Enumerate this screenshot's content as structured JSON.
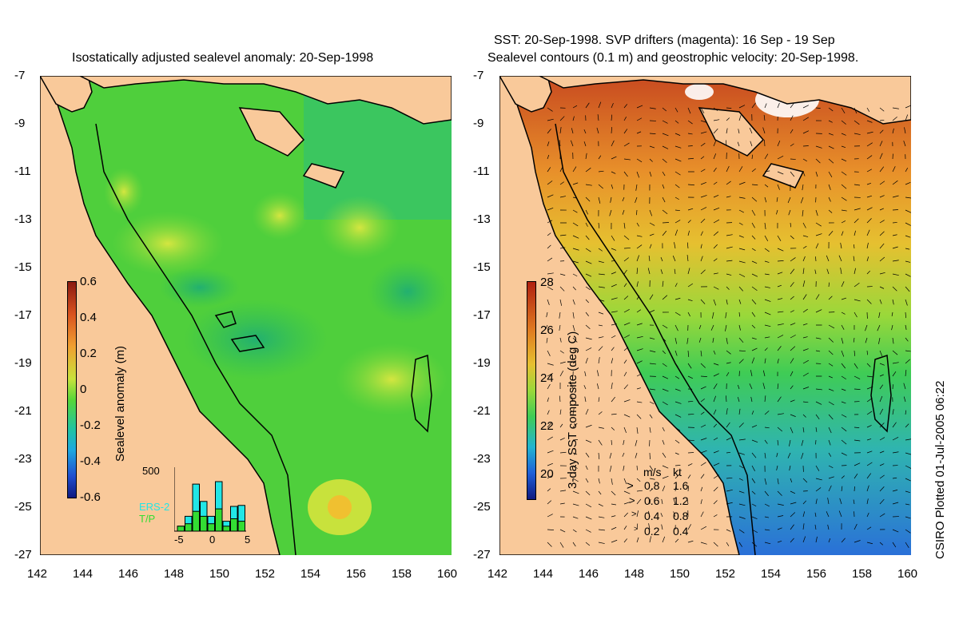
{
  "left_panel": {
    "title": "Isostatically adjusted sealevel anomaly: 20-Sep-1998",
    "y_ticks": [
      "-7",
      "-9",
      "-11",
      "-13",
      "-15",
      "-17",
      "-19",
      "-21",
      "-23",
      "-25",
      "-27"
    ],
    "x_ticks": [
      "142",
      "144",
      "146",
      "148",
      "150",
      "152",
      "154",
      "156",
      "158",
      "160"
    ],
    "colorbar_label": "Sealevel anomaly (m)",
    "colorbar_ticks": [
      "0.6",
      "0.4",
      "0.2",
      "0",
      "-0.2",
      "-0.4",
      "-0.6"
    ],
    "histogram": {
      "ymax_label": "500",
      "x_ticks": [
        "-5",
        "0",
        "5"
      ],
      "legend": [
        {
          "label": "ERS-2",
          "color": "#22e6e6"
        },
        {
          "label": "T/P",
          "color": "#33dd33"
        }
      ],
      "bars_ers2": [
        0.1,
        0.3,
        0.95,
        0.6,
        0.3,
        1.0,
        0.2,
        0.5,
        0.52
      ],
      "bars_tp": [
        0.1,
        0.15,
        0.4,
        0.3,
        0.15,
        0.45,
        0.1,
        0.25,
        0.2
      ]
    }
  },
  "right_panel": {
    "title_line1": "SST: 20-Sep-1998. SVP drifters (magenta): 16 Sep - 19 Sep",
    "title_line2": "Sealevel contours (0.1 m) and geostrophic velocity: 20-Sep-1998.",
    "y_ticks": [
      "-7",
      "-9",
      "-11",
      "-13",
      "-15",
      "-17",
      "-19",
      "-21",
      "-23",
      "-25",
      "-27"
    ],
    "x_ticks": [
      "142",
      "144",
      "146",
      "148",
      "150",
      "152",
      "154",
      "156",
      "158",
      "160"
    ],
    "colorbar_label": "3-day SST composite (deg C)",
    "colorbar_ticks": [
      "28",
      "26",
      "24",
      "22",
      "20"
    ],
    "velocity_legend": {
      "header_ms": "m/s",
      "header_kt": "kt",
      "rows": [
        {
          "ms": "0.8",
          "kt": "1.6"
        },
        {
          "ms": "0.6",
          "kt": "1.2"
        },
        {
          "ms": "0.4",
          "kt": "0.8"
        },
        {
          "ms": "0.2",
          "kt": "0.4"
        }
      ]
    }
  },
  "credit": "CSIRO Plotted 01-Jul-2005 06:22",
  "colors": {
    "land": "#f9c99a",
    "ocean_mid": "#55d63a",
    "ocean_dark": "#2fbf55",
    "ocean_light": "#a8e83a",
    "sst_warm": "#e07a20",
    "sst_cool": "#2b90e0"
  }
}
